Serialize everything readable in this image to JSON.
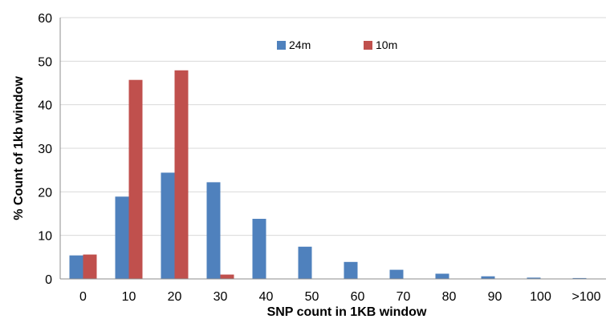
{
  "chart_data": {
    "type": "bar",
    "categories": [
      "0",
      "10",
      "20",
      "30",
      "40",
      "50",
      "60",
      "70",
      "80",
      "90",
      "100",
      ">100"
    ],
    "series": [
      {
        "name": "24m",
        "color": "#4f81bd",
        "values": [
          5.4,
          18.9,
          24.4,
          22.2,
          13.8,
          7.4,
          3.9,
          2.1,
          1.2,
          0.6,
          0.3,
          0.2
        ]
      },
      {
        "name": "10m",
        "color": "#c0504d",
        "values": [
          5.6,
          45.7,
          47.9,
          1.0,
          0,
          0,
          0,
          0,
          0,
          0,
          0,
          0
        ]
      }
    ],
    "title": "",
    "xlabel": "SNP count in 1KB window",
    "ylabel": "% Count of 1kb window",
    "ylim": [
      0,
      60
    ],
    "yticks": [
      0,
      10,
      20,
      30,
      40,
      50,
      60
    ],
    "grid": true,
    "legend_position": "top-center"
  }
}
